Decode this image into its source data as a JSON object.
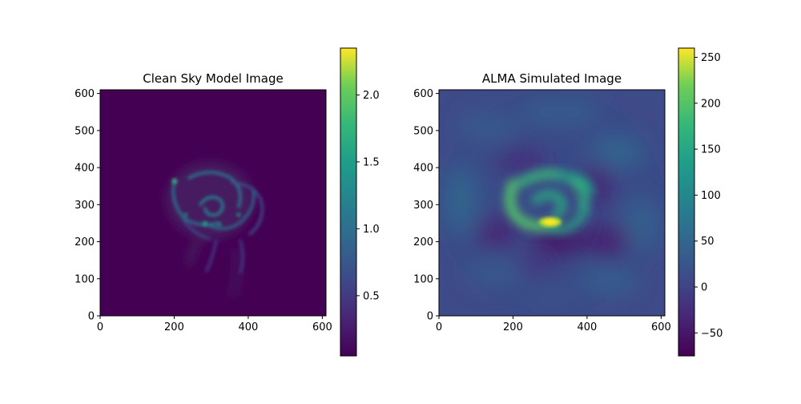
{
  "chart_data": [
    {
      "type": "heatmap",
      "title": "Clean Sky Model Image",
      "xlabel": "",
      "ylabel": "",
      "xlim": [
        0,
        610
      ],
      "ylim": [
        0,
        610
      ],
      "xticks": [
        0,
        200,
        400,
        600
      ],
      "yticks": [
        0,
        100,
        200,
        300,
        400,
        500,
        600
      ],
      "colormap": "viridis",
      "colorbar": {
        "range": [
          0.05,
          2.35
        ],
        "ticks": [
          0.5,
          1.0,
          1.5,
          2.0
        ],
        "tick_labels": [
          "0.5",
          "1.0",
          "1.5",
          "2.0"
        ]
      },
      "features": [
        {
          "shape": "spiral",
          "center": [
            295,
            300
          ],
          "peak": 2.3
        }
      ],
      "background_value": 0.06
    },
    {
      "type": "heatmap",
      "title": "ALMA Simulated Image",
      "xlabel": "",
      "ylabel": "",
      "xlim": [
        0,
        610
      ],
      "ylim": [
        0,
        610
      ],
      "xticks": [
        0,
        200,
        400,
        600
      ],
      "yticks": [
        0,
        100,
        200,
        300,
        400,
        500,
        600
      ],
      "colormap": "viridis",
      "colorbar": {
        "range": [
          -75,
          260
        ],
        "ticks": [
          -50,
          0,
          50,
          100,
          150,
          200,
          250
        ],
        "tick_labels": [
          "−50",
          "0",
          "50",
          "100",
          "150",
          "200",
          "250"
        ]
      },
      "features": [
        {
          "shape": "circular-field",
          "center": [
            305,
            305
          ],
          "radius": 300
        },
        {
          "shape": "spiral",
          "center": [
            305,
            300
          ],
          "peak": 200
        },
        {
          "shape": "bright-blob",
          "center": [
            300,
            250
          ],
          "peak": 255
        }
      ],
      "background_value": 0
    }
  ]
}
